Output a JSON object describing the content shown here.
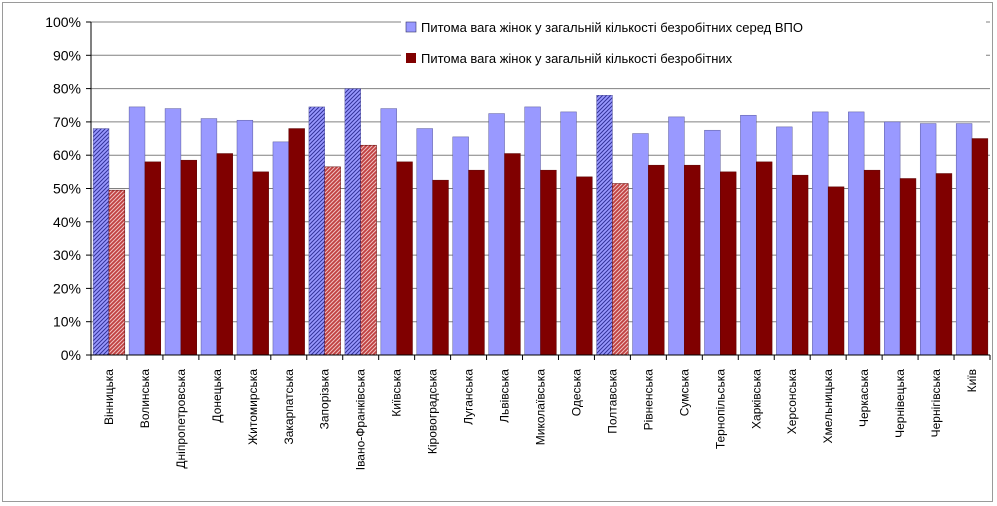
{
  "chart_data": {
    "type": "bar",
    "categories": [
      "Вінницька",
      "Волинська",
      "Дніпропетровська",
      "Донецька",
      "Житомирська",
      "Закарпатська",
      "Запорізька",
      "Івано-Франківська",
      "Київська",
      "Кіровоградська",
      "Луганська",
      "Львівська",
      "Миколаївська",
      "Одеська",
      "Полтавська",
      "Рівненська",
      "Сумська",
      "Тернопільська",
      "Харківська",
      "Херсонська",
      "Хмельницька",
      "Черкаська",
      "Чернівецька",
      "Чернігівська",
      "Київ"
    ],
    "series": [
      {
        "name": "Питома вага жінок у загальній кількості безробітних серед ВПО",
        "color": "#9999ff",
        "values": [
          68,
          74.5,
          74,
          71,
          70.5,
          64,
          74.5,
          80,
          74,
          68,
          65.5,
          72.5,
          74.5,
          73,
          78,
          66.5,
          71.5,
          67.5,
          72,
          68.5,
          73,
          73,
          70,
          69.5,
          69.5
        ]
      },
      {
        "name": "Питома вага жінок у загальній кількості безробітних",
        "color": "#800000",
        "values": [
          49.5,
          58,
          58.5,
          60.5,
          55,
          68,
          56.5,
          63,
          58,
          52.5,
          55.5,
          60.5,
          55.5,
          53.5,
          51.5,
          57,
          57,
          55,
          58,
          54,
          50.5,
          55.5,
          53,
          54.5,
          65
        ]
      }
    ],
    "hatched_categories": [
      "Вінницька",
      "Запорізька",
      "Івано-Франківська",
      "Полтавська"
    ],
    "y_ticks": [
      "0%",
      "10%",
      "20%",
      "30%",
      "40%",
      "50%",
      "60%",
      "70%",
      "80%",
      "90%",
      "100%"
    ],
    "ylim": [
      0,
      100
    ],
    "grid": true,
    "legend_position": "top-right",
    "title": "",
    "xlabel": "",
    "ylabel": ""
  }
}
